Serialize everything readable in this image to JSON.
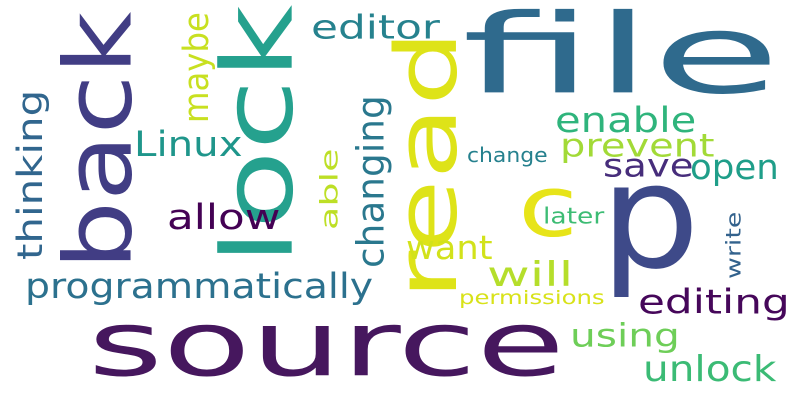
{
  "words": [
    {
      "id": "source",
      "text": "source",
      "color": "#46175e",
      "vertical": false
    },
    {
      "id": "file",
      "text": "file",
      "color": "#2f6a8d",
      "vertical": false
    },
    {
      "id": "back",
      "text": "back",
      "color": "#413d84",
      "vertical": true
    },
    {
      "id": "lock",
      "text": "lock",
      "color": "#25a18e",
      "vertical": true
    },
    {
      "id": "read",
      "text": "read",
      "color": "#dee318",
      "vertical": true
    },
    {
      "id": "p",
      "text": "p",
      "color": "#3e4a89",
      "vertical": false
    },
    {
      "id": "c",
      "text": "c",
      "color": "#e7e419",
      "vertical": false
    },
    {
      "id": "programmatically",
      "text": "programmatically",
      "color": "#2c718e",
      "vertical": false
    },
    {
      "id": "editing",
      "text": "editing",
      "color": "#46075a",
      "vertical": false
    },
    {
      "id": "unlock",
      "text": "unlock",
      "color": "#3bbb75",
      "vertical": false
    },
    {
      "id": "using",
      "text": "using",
      "color": "#6ece58",
      "vertical": false
    },
    {
      "id": "editor",
      "text": "editor",
      "color": "#26828e",
      "vertical": false
    },
    {
      "id": "enable",
      "text": "enable",
      "color": "#2fb47c",
      "vertical": false
    },
    {
      "id": "prevent",
      "text": "prevent",
      "color": "#a2da37",
      "vertical": false
    },
    {
      "id": "open",
      "text": "open",
      "color": "#1f9e89",
      "vertical": false
    },
    {
      "id": "save",
      "text": "save",
      "color": "#472d7b",
      "vertical": false
    },
    {
      "id": "allow",
      "text": "allow",
      "color": "#440154",
      "vertical": false
    },
    {
      "id": "Linux",
      "text": "Linux",
      "color": "#1f968b",
      "vertical": false
    },
    {
      "id": "thinking",
      "text": "thinking",
      "color": "#31668e",
      "vertical": true
    },
    {
      "id": "maybe",
      "text": "maybe",
      "color": "#c8e020",
      "vertical": true
    },
    {
      "id": "changing",
      "text": "changing",
      "color": "#2a788e",
      "vertical": true
    },
    {
      "id": "able",
      "text": "able",
      "color": "#bddf26",
      "vertical": true
    },
    {
      "id": "want",
      "text": "want",
      "color": "#d2e21b",
      "vertical": false
    },
    {
      "id": "will",
      "text": "will",
      "color": "#b5de2b",
      "vertical": false
    },
    {
      "id": "permissions",
      "text": "permissions",
      "color": "#d8e219",
      "vertical": false
    },
    {
      "id": "change",
      "text": "change",
      "color": "#26818e",
      "vertical": false
    },
    {
      "id": "later",
      "text": "later",
      "color": "#3dbc74",
      "vertical": false
    },
    {
      "id": "write",
      "text": "write",
      "color": "#33628d",
      "vertical": true
    }
  ]
}
